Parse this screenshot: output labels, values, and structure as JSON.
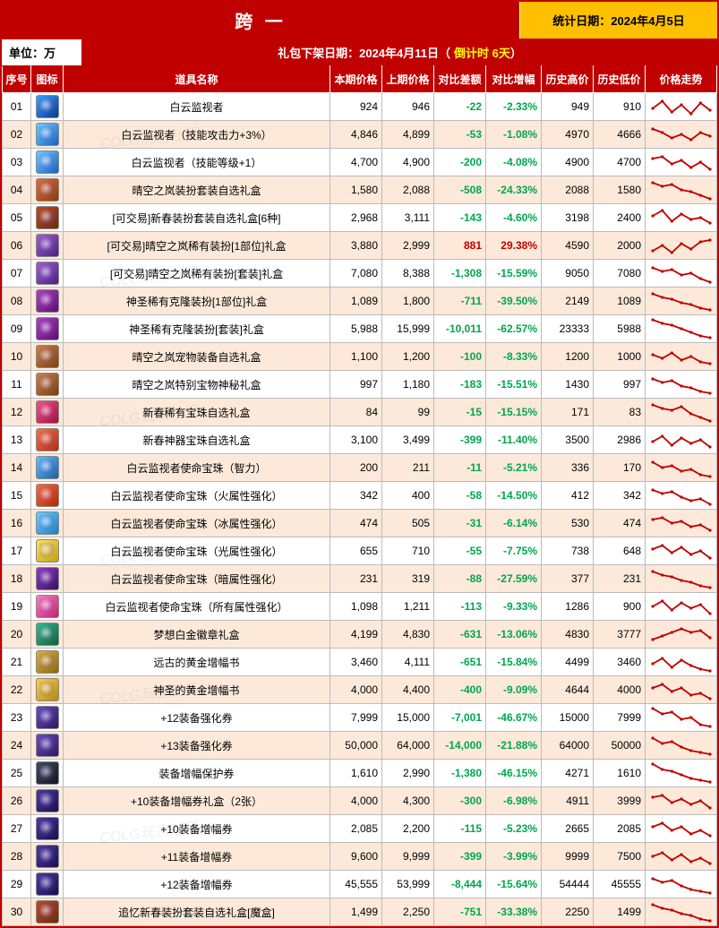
{
  "header": {
    "title": "跨 一",
    "stat_date_label": "统计日期：2024年4月5日",
    "unit_label": "单位：万",
    "pack_date_prefix": "礼包下架日期：2024年4月11日（",
    "countdown": "倒计时 6天",
    "pack_date_suffix": "）"
  },
  "columns": [
    "序号",
    "图标",
    "道具名称",
    "本期价格",
    "上期价格",
    "对比差额",
    "对比增幅",
    "历史高价",
    "历史低价",
    "价格走势"
  ],
  "colors": {
    "negative": "#00a650",
    "positive": "#c00000",
    "odd_row": "#fde9d9",
    "even_row": "#ffffff"
  },
  "watermark": "COLG玩家社区",
  "rows": [
    {
      "idx": "01",
      "name": "白云监视者",
      "cur": "924",
      "prev": "946",
      "diff": "-22",
      "pct": "-2.33%",
      "hi": "949",
      "lo": "910",
      "ic": [
        "#3aa0ff",
        "#0a3a8a"
      ],
      "sp": [
        14,
        6,
        18,
        10,
        20,
        8,
        16
      ]
    },
    {
      "idx": "02",
      "name": "白云监视者（技能攻击力+3%）",
      "cur": "4,846",
      "prev": "4,899",
      "diff": "-53",
      "pct": "-1.08%",
      "hi": "4970",
      "lo": "4666",
      "ic": [
        "#6ad0ff",
        "#1a60c0"
      ],
      "sp": [
        6,
        10,
        16,
        12,
        18,
        10,
        14
      ]
    },
    {
      "idx": "03",
      "name": "白云监视者（技能等级+1）",
      "cur": "4,700",
      "prev": "4,900",
      "diff": "-200",
      "pct": "-4.08%",
      "hi": "4900",
      "lo": "4700",
      "ic": [
        "#6ad0ff",
        "#1a60c0"
      ],
      "sp": [
        8,
        6,
        14,
        10,
        18,
        12,
        20
      ]
    },
    {
      "idx": "04",
      "name": "晴空之岚装扮套装自选礼盒",
      "cur": "1,580",
      "prev": "2,088",
      "diff": "-508",
      "pct": "-24.33%",
      "hi": "2088",
      "lo": "1580",
      "ic": [
        "#e07030",
        "#8a3a10"
      ],
      "sp": [
        4,
        8,
        6,
        12,
        14,
        18,
        22
      ]
    },
    {
      "idx": "05",
      "name": "[可交易]新春装扮套装自选礼盒[6种]",
      "cur": "2,968",
      "prev": "3,111",
      "diff": "-143",
      "pct": "-4.60%",
      "hi": "3198",
      "lo": "2400",
      "ic": [
        "#c04a20",
        "#6a2a10"
      ],
      "sp": [
        10,
        4,
        16,
        8,
        14,
        12,
        18
      ]
    },
    {
      "idx": "06",
      "name": "[可交易]晴空之岚稀有装扮[1部位]礼盒",
      "cur": "3,880",
      "prev": "2,999",
      "diff": "881",
      "pct": "29.38%",
      "hi": "4590",
      "lo": "2000",
      "ic": [
        "#a060d0",
        "#4a2080"
      ],
      "sp": [
        18,
        12,
        20,
        10,
        16,
        8,
        6
      ],
      "pos": true
    },
    {
      "idx": "07",
      "name": "[可交易]晴空之岚稀有装扮[套装]礼盒",
      "cur": "7,080",
      "prev": "8,388",
      "diff": "-1,308",
      "pct": "-15.59%",
      "hi": "9050",
      "lo": "7080",
      "ic": [
        "#a060d0",
        "#4a2080"
      ],
      "sp": [
        6,
        10,
        8,
        14,
        12,
        18,
        22
      ]
    },
    {
      "idx": "08",
      "name": "神圣稀有克隆装扮[1部位]礼盒",
      "cur": "1,089",
      "prev": "1,800",
      "diff": "-711",
      "pct": "-39.50%",
      "hi": "2149",
      "lo": "1089",
      "ic": [
        "#b040c0",
        "#5a1070"
      ],
      "sp": [
        4,
        8,
        10,
        14,
        16,
        20,
        22
      ]
    },
    {
      "idx": "09",
      "name": "神圣稀有克隆装扮[套装]礼盒",
      "cur": "5,988",
      "prev": "15,999",
      "diff": "-10,011",
      "pct": "-62.57%",
      "hi": "23333",
      "lo": "5988",
      "ic": [
        "#b040c0",
        "#5a1070"
      ],
      "sp": [
        2,
        6,
        8,
        12,
        16,
        20,
        22
      ]
    },
    {
      "idx": "10",
      "name": "晴空之岚宠物装备自选礼盒",
      "cur": "1,100",
      "prev": "1,200",
      "diff": "-100",
      "pct": "-8.33%",
      "hi": "1200",
      "lo": "1000",
      "ic": [
        "#d08040",
        "#7a4010"
      ],
      "sp": [
        10,
        14,
        8,
        16,
        12,
        18,
        20
      ]
    },
    {
      "idx": "11",
      "name": "晴空之岚特别宝物神秘礼盒",
      "cur": "997",
      "prev": "1,180",
      "diff": "-183",
      "pct": "-15.51%",
      "hi": "1430",
      "lo": "997",
      "ic": [
        "#d08040",
        "#7a4010"
      ],
      "sp": [
        6,
        10,
        8,
        14,
        16,
        20,
        22
      ]
    },
    {
      "idx": "12",
      "name": "新春稀有宝珠自选礼盒",
      "cur": "84",
      "prev": "99",
      "diff": "-15",
      "pct": "-15.15%",
      "hi": "171",
      "lo": "83",
      "ic": [
        "#ff5080",
        "#a01040"
      ],
      "sp": [
        4,
        8,
        10,
        6,
        14,
        18,
        22
      ]
    },
    {
      "idx": "13",
      "name": "新春神器宝珠自选礼盒",
      "cur": "3,100",
      "prev": "3,499",
      "diff": "-399",
      "pct": "-11.40%",
      "hi": "3500",
      "lo": "2986",
      "ic": [
        "#ff7040",
        "#b03010"
      ],
      "sp": [
        14,
        8,
        18,
        10,
        16,
        12,
        20
      ]
    },
    {
      "idx": "14",
      "name": "白云监视者使命宝珠（智力）",
      "cur": "200",
      "prev": "211",
      "diff": "-11",
      "pct": "-5.21%",
      "hi": "336",
      "lo": "170",
      "ic": [
        "#60c0ff",
        "#1a60a0"
      ],
      "sp": [
        6,
        12,
        10,
        16,
        14,
        20,
        22
      ]
    },
    {
      "idx": "15",
      "name": "白云监视者使命宝珠（火属性强化）",
      "cur": "342",
      "prev": "400",
      "diff": "-58",
      "pct": "-14.50%",
      "hi": "412",
      "lo": "342",
      "ic": [
        "#ff6a3a",
        "#b02a00"
      ],
      "sp": [
        6,
        10,
        8,
        14,
        18,
        16,
        22
      ]
    },
    {
      "idx": "16",
      "name": "白云监视者使命宝珠（冰属性强化）",
      "cur": "474",
      "prev": "505",
      "diff": "-31",
      "pct": "-6.14%",
      "hi": "530",
      "lo": "474",
      "ic": [
        "#6ad0ff",
        "#1a80c0"
      ],
      "sp": [
        8,
        6,
        12,
        10,
        16,
        14,
        20
      ]
    },
    {
      "idx": "17",
      "name": "白云监视者使命宝珠（光属性强化）",
      "cur": "655",
      "prev": "710",
      "diff": "-55",
      "pct": "-7.75%",
      "hi": "738",
      "lo": "648",
      "ic": [
        "#ffe060",
        "#c0a010"
      ],
      "sp": [
        10,
        6,
        14,
        8,
        16,
        12,
        20
      ]
    },
    {
      "idx": "18",
      "name": "白云监视者使命宝珠（暗属性强化）",
      "cur": "231",
      "prev": "319",
      "diff": "-88",
      "pct": "-27.59%",
      "hi": "377",
      "lo": "231",
      "ic": [
        "#8a40c0",
        "#3a1060"
      ],
      "sp": [
        4,
        8,
        10,
        14,
        16,
        20,
        22
      ]
    },
    {
      "idx": "19",
      "name": "白云监视者使命宝珠（所有属性强化）",
      "cur": "1,098",
      "prev": "1,211",
      "diff": "-113",
      "pct": "-9.33%",
      "hi": "1286",
      "lo": "900",
      "ic": [
        "#ff80c0",
        "#c02070"
      ],
      "sp": [
        12,
        6,
        16,
        8,
        14,
        10,
        20
      ]
    },
    {
      "idx": "20",
      "name": "梦想白金徽章礼盒",
      "cur": "4,199",
      "prev": "4,830",
      "diff": "-631",
      "pct": "-13.06%",
      "hi": "4830",
      "lo": "3777",
      "ic": [
        "#30c080",
        "#106040"
      ],
      "sp": [
        18,
        14,
        10,
        6,
        10,
        8,
        16
      ]
    },
    {
      "idx": "21",
      "name": "远古的黄金增幅书",
      "cur": "3,460",
      "prev": "4,111",
      "diff": "-651",
      "pct": "-15.84%",
      "hi": "4499",
      "lo": "3460",
      "ic": [
        "#e0b030",
        "#8a6a10"
      ],
      "sp": [
        14,
        8,
        18,
        10,
        16,
        20,
        22
      ]
    },
    {
      "idx": "22",
      "name": "神圣的黄金增幅书",
      "cur": "4,000",
      "prev": "4,400",
      "diff": "-400",
      "pct": "-9.09%",
      "hi": "4644",
      "lo": "4000",
      "ic": [
        "#ffd040",
        "#b08a10"
      ],
      "sp": [
        10,
        6,
        14,
        10,
        18,
        16,
        22
      ]
    },
    {
      "idx": "23",
      "name": "+12装备强化券",
      "cur": "7,999",
      "prev": "15,000",
      "diff": "-7,001",
      "pct": "-46.67%",
      "hi": "15000",
      "lo": "7999",
      "ic": [
        "#6a4ac0",
        "#2a1a60"
      ],
      "sp": [
        2,
        8,
        6,
        14,
        12,
        20,
        22
      ]
    },
    {
      "idx": "24",
      "name": "+13装备强化券",
      "cur": "50,000",
      "prev": "64,000",
      "diff": "-14,000",
      "pct": "-21.88%",
      "hi": "64000",
      "lo": "50000",
      "ic": [
        "#6a4ac0",
        "#2a1a60"
      ],
      "sp": [
        4,
        10,
        8,
        14,
        18,
        20,
        22
      ]
    },
    {
      "idx": "25",
      "name": "装备增幅保护券",
      "cur": "1,610",
      "prev": "2,990",
      "diff": "-1,380",
      "pct": "-46.15%",
      "hi": "4271",
      "lo": "1610",
      "ic": [
        "#404a60",
        "#101820"
      ],
      "sp": [
        2,
        8,
        10,
        14,
        18,
        20,
        22
      ]
    },
    {
      "idx": "26",
      "name": "+10装备增幅券礼盒（2张）",
      "cur": "4,000",
      "prev": "4,300",
      "diff": "-300",
      "pct": "-6.98%",
      "hi": "4911",
      "lo": "3999",
      "ic": [
        "#4a3aa0",
        "#1a1050"
      ],
      "sp": [
        8,
        6,
        14,
        10,
        16,
        12,
        20
      ]
    },
    {
      "idx": "27",
      "name": "+10装备增幅券",
      "cur": "2,085",
      "prev": "2,200",
      "diff": "-115",
      "pct": "-5.23%",
      "hi": "2665",
      "lo": "2085",
      "ic": [
        "#4a3aa0",
        "#1a1050"
      ],
      "sp": [
        10,
        6,
        14,
        10,
        18,
        14,
        20
      ]
    },
    {
      "idx": "28",
      "name": "+11装备增幅券",
      "cur": "9,600",
      "prev": "9,999",
      "diff": "-399",
      "pct": "-3.99%",
      "hi": "9999",
      "lo": "7500",
      "ic": [
        "#4a3aa0",
        "#1a1050"
      ],
      "sp": [
        12,
        8,
        16,
        10,
        18,
        14,
        20
      ]
    },
    {
      "idx": "29",
      "name": "+12装备增幅券",
      "cur": "45,555",
      "prev": "53,999",
      "diff": "-8,444",
      "pct": "-15.64%",
      "hi": "54444",
      "lo": "45555",
      "ic": [
        "#4a3aa0",
        "#1a1050"
      ],
      "sp": [
        6,
        10,
        8,
        14,
        18,
        20,
        22
      ]
    },
    {
      "idx": "30",
      "name": "追忆新春装扮套装自选礼盒[魔盒]",
      "cur": "1,499",
      "prev": "2,250",
      "diff": "-751",
      "pct": "-33.38%",
      "hi": "2250",
      "lo": "1499",
      "ic": [
        "#c04a20",
        "#6a2a10"
      ],
      "sp": [
        4,
        8,
        10,
        14,
        16,
        20,
        22
      ]
    }
  ]
}
